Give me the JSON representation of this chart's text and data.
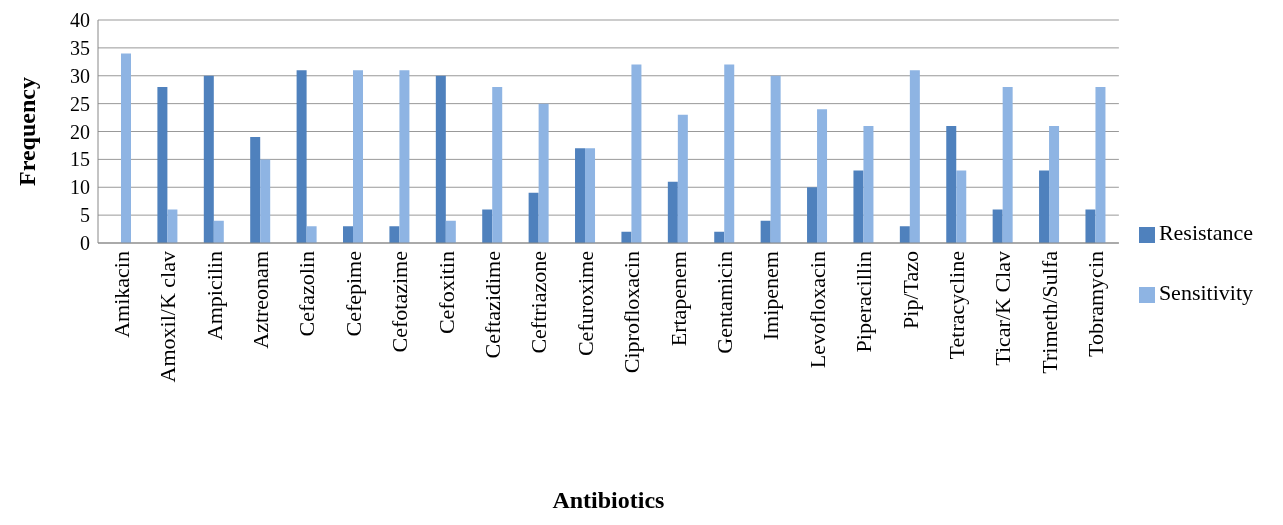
{
  "chart_data": {
    "type": "bar",
    "xlabel": "Antibiotics",
    "ylabel": "Frequency",
    "categories": [
      "Amikacin",
      "Amoxil/K clav",
      "Ampicilin",
      "Aztreonam",
      "Cefazolin",
      "Cefepime",
      "Cefotazime",
      "Cefoxitin",
      "Ceftazidime",
      "Ceftriazone",
      "Cefuroxime",
      "Ciprofloxacin",
      "Ertapenem",
      "Gentamicin",
      "Imipenem",
      "Levofloxacin",
      "Piperacillin",
      "Pip/Tazo",
      "Tetracycline",
      "Ticar/K Clav",
      "Trimeth/Sulfa",
      "Tobramycin"
    ],
    "series": [
      {
        "name": "Resistance",
        "color": "#4f81bd",
        "values": [
          0,
          28,
          30,
          19,
          31,
          3,
          3,
          30,
          6,
          9,
          17,
          2,
          11,
          2,
          4,
          10,
          13,
          3,
          21,
          6,
          13,
          6
        ]
      },
      {
        "name": "Sensitivity",
        "color": "#8eb4e3",
        "values": [
          34,
          6,
          4,
          15,
          3,
          31,
          31,
          4,
          28,
          25,
          17,
          32,
          23,
          32,
          30,
          24,
          21,
          31,
          13,
          28,
          21,
          28
        ]
      }
    ],
    "ylim": [
      0,
      40
    ],
    "yticks": [
      0,
      5,
      10,
      15,
      20,
      25,
      30,
      35,
      40
    ],
    "grid": "y",
    "legend": "right"
  }
}
